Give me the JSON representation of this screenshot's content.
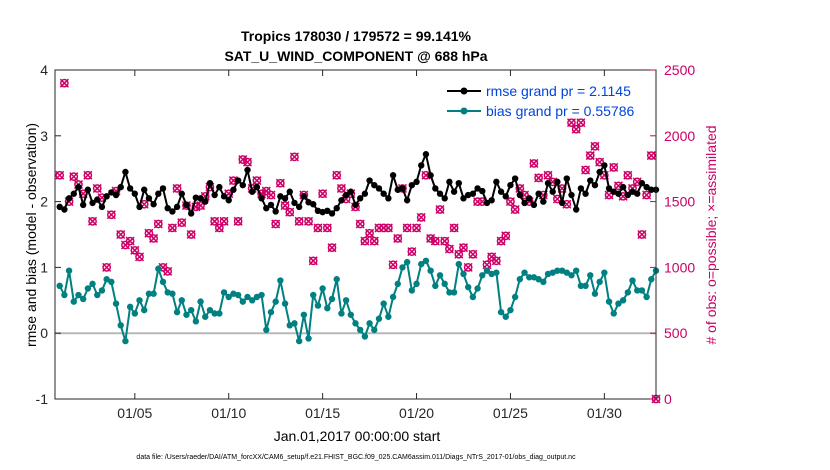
{
  "chart_data": {
    "type": "line",
    "title": "Tropics 178030 / 179572 = 99.141%",
    "subtitle": "SAT_U_WIND_COMPONENT @ 688 hPa",
    "xlabel": "Jan.01,2017 00:00:00 start",
    "ylabel": "rmse and bias (model - observation)",
    "y2label": "# of obs: o=possible; ×=assimilated",
    "footer": "data file: /Users/raeder/DAI/ATM_forcXX/CAM6_setup/f.e21.FHIST_BGC.f09_025.CAM6assim.011/Diags_NTrS_2017-01/obs_diag_output.nc",
    "xlim": [
      0.75,
      32.75
    ],
    "ylim": [
      -1,
      4
    ],
    "y2lim": [
      0,
      2500
    ],
    "x_ticks": [
      5,
      10,
      15,
      20,
      25,
      30
    ],
    "x_tick_labels": [
      "01/05",
      "01/10",
      "01/15",
      "01/20",
      "01/25",
      "01/30"
    ],
    "y_ticks": [
      -1,
      0,
      1,
      2,
      3,
      4
    ],
    "y_tick_labels": [
      "-1",
      "0",
      "1",
      "2",
      "3",
      "4"
    ],
    "y2_ticks": [
      0,
      500,
      1000,
      1500,
      2000,
      2500
    ],
    "y2_tick_labels": [
      "0",
      "500",
      "1000",
      "1500",
      "2000",
      "2500"
    ],
    "x": [
      1.0,
      1.25,
      1.5,
      1.75,
      2.0,
      2.25,
      2.5,
      2.75,
      3.0,
      3.25,
      3.5,
      3.75,
      4.0,
      4.25,
      4.5,
      4.75,
      5.0,
      5.25,
      5.5,
      5.75,
      6.0,
      6.25,
      6.5,
      6.75,
      7.0,
      7.25,
      7.5,
      7.75,
      8.0,
      8.25,
      8.5,
      8.75,
      9.0,
      9.25,
      9.5,
      9.75,
      10.0,
      10.25,
      10.5,
      10.75,
      11.0,
      11.25,
      11.5,
      11.75,
      12.0,
      12.25,
      12.5,
      12.75,
      13.0,
      13.25,
      13.5,
      13.75,
      14.0,
      14.25,
      14.5,
      14.75,
      15.0,
      15.25,
      15.5,
      15.75,
      16.0,
      16.25,
      16.5,
      16.75,
      17.0,
      17.25,
      17.5,
      17.75,
      18.0,
      18.25,
      18.5,
      18.75,
      19.0,
      19.25,
      19.5,
      19.75,
      20.0,
      20.25,
      20.5,
      20.75,
      21.0,
      21.25,
      21.5,
      21.75,
      22.0,
      22.25,
      22.5,
      22.75,
      23.0,
      23.25,
      23.5,
      23.75,
      24.0,
      24.25,
      24.5,
      24.75,
      25.0,
      25.25,
      25.5,
      25.75,
      26.0,
      26.25,
      26.5,
      26.75,
      27.0,
      27.25,
      27.5,
      27.75,
      28.0,
      28.25,
      28.5,
      28.75,
      29.0,
      29.25,
      29.5,
      29.75,
      30.0,
      30.25,
      30.5,
      30.75,
      31.0,
      31.25,
      31.5,
      31.75,
      32.0,
      32.25,
      32.5,
      32.75
    ],
    "series": [
      {
        "name": "rmse grand pr = 2.1145",
        "axis": "left",
        "color": "#000000",
        "marker": "circle",
        "values": [
          1.92,
          1.88,
          2.05,
          2.12,
          2.22,
          1.95,
          2.18,
          1.98,
          2.03,
          1.92,
          2.08,
          2.14,
          2.1,
          2.22,
          2.45,
          2.2,
          2.12,
          1.92,
          2.18,
          2.05,
          1.96,
          2.12,
          2.2,
          1.9,
          1.85,
          1.92,
          2.12,
          1.95,
          1.82,
          2.06,
          2.05,
          2.0,
          2.28,
          2.1,
          2.22,
          2.08,
          2.02,
          2.18,
          2.32,
          2.25,
          2.48,
          2.15,
          2.22,
          2.05,
          1.9,
          1.95,
          1.85,
          2.08,
          2.05,
          2.15,
          1.98,
          1.92,
          2.08,
          1.99,
          1.96,
          1.86,
          1.84,
          1.86,
          1.82,
          1.9,
          2.02,
          2.1,
          2.15,
          1.95,
          2.05,
          2.12,
          2.32,
          2.25,
          2.2,
          2.12,
          2.05,
          2.4,
          2.18,
          2.2,
          2.02,
          2.25,
          2.3,
          2.55,
          2.72,
          2.4,
          2.2,
          2.12,
          2.05,
          2.3,
          2.15,
          2.28,
          2.05,
          2.1,
          2.12,
          2.2,
          2.16,
          1.98,
          2.02,
          2.3,
          2.15,
          2.08,
          2.25,
          2.35,
          2.1,
          1.98,
          2.05,
          1.95,
          2.12,
          2.0,
          2.28,
          2.15,
          2.3,
          1.98,
          2.35,
          2.1,
          1.88,
          2.2,
          2.12,
          2.32,
          2.25,
          2.45,
          2.55,
          2.2,
          2.15,
          2.12,
          2.22,
          2.1,
          2.15,
          2.12,
          2.28,
          2.22,
          2.18,
          2.18
        ]
      },
      {
        "name": "bias grand pr = 0.55786",
        "axis": "left",
        "color": "#008080",
        "marker": "circle",
        "values": [
          0.72,
          0.58,
          0.95,
          0.48,
          0.58,
          0.52,
          0.68,
          0.75,
          0.58,
          0.65,
          0.82,
          0.78,
          0.45,
          0.12,
          -0.12,
          0.4,
          0.3,
          0.5,
          0.35,
          0.6,
          0.6,
          0.98,
          0.78,
          0.62,
          0.6,
          0.32,
          0.5,
          0.28,
          0.35,
          0.18,
          0.48,
          0.25,
          0.35,
          0.3,
          0.3,
          0.62,
          0.55,
          0.6,
          0.58,
          0.48,
          0.55,
          0.5,
          0.55,
          0.58,
          0.05,
          0.32,
          0.48,
          0.8,
          0.45,
          0.12,
          0.15,
          -0.12,
          0.28,
          -0.08,
          0.58,
          0.42,
          0.68,
          0.38,
          0.52,
          0.82,
          0.3,
          0.5,
          0.28,
          0.15,
          0.05,
          -0.05,
          0.15,
          0.05,
          0.22,
          0.45,
          0.25,
          0.55,
          0.75,
          1.0,
          1.08,
          0.65,
          0.75,
          1.05,
          1.1,
          0.95,
          0.72,
          0.88,
          0.75,
          0.62,
          0.62,
          1.05,
          0.9,
          0.7,
          0.55,
          0.68,
          0.88,
          0.95,
          0.9,
          0.92,
          0.32,
          0.25,
          0.35,
          0.55,
          0.82,
          0.92,
          0.85,
          0.85,
          0.82,
          0.78,
          0.9,
          0.92,
          0.95,
          0.95,
          0.92,
          0.88,
          0.95,
          0.72,
          0.72,
          0.88,
          0.6,
          0.78,
          0.92,
          0.48,
          0.3,
          0.45,
          0.5,
          0.62,
          0.8,
          0.65,
          0.65,
          0.55,
          0.82,
          0.95
        ]
      }
    ],
    "obs_counts": {
      "axis": "right",
      "color": "#cc0066",
      "possible": [
        1700,
        2400,
        1500,
        1690,
        1630,
        1560,
        1700,
        1350,
        1600,
        1530,
        1000,
        1400,
        1580,
        1250,
        1170,
        1200,
        1130,
        1080,
        1480,
        1260,
        1220,
        1330,
        1000,
        970,
        1300,
        1600,
        1340,
        1470,
        1250,
        1460,
        1470,
        1540,
        1610,
        1350,
        1300,
        1350,
        1560,
        1660,
        1350,
        1820,
        1800,
        1600,
        1660,
        1560,
        1580,
        1550,
        1330,
        1640,
        1470,
        1420,
        1840,
        1350,
        1550,
        1350,
        1050,
        1300,
        1560,
        1300,
        1150,
        1700,
        1600,
        1520,
        1560,
        1460,
        1330,
        1200,
        1260,
        1200,
        1300,
        1300,
        1300,
        1020,
        1220,
        1600,
        1300,
        1120,
        1300,
        1380,
        1700,
        1220,
        1200,
        1440,
        1200,
        1140,
        1300,
        1100,
        1150,
        1000,
        1100,
        1500,
        1500,
        1020,
        1080,
        1050,
        1200,
        1240,
        1500,
        1440,
        1600,
        1550,
        1500,
        1790,
        1680,
        1550,
        1700,
        1650,
        1520,
        1600,
        1480,
        2100,
        2050,
        2100,
        1740,
        1850,
        1920,
        1800,
        1700,
        1550,
        1760,
        1620,
        1540,
        1700,
        1600,
        1650,
        1250,
        1550,
        1850,
        0
      ]
    },
    "legend_position": "top-right",
    "legend": [
      "rmse grand pr = 2.1145",
      "bias grand pr = 0.55786"
    ],
    "colors": {
      "rmse": "#000000",
      "bias": "#008080",
      "obs": "#cc0066",
      "legend_text": "#0044dd",
      "zero_line": "#b8b8b8"
    }
  }
}
